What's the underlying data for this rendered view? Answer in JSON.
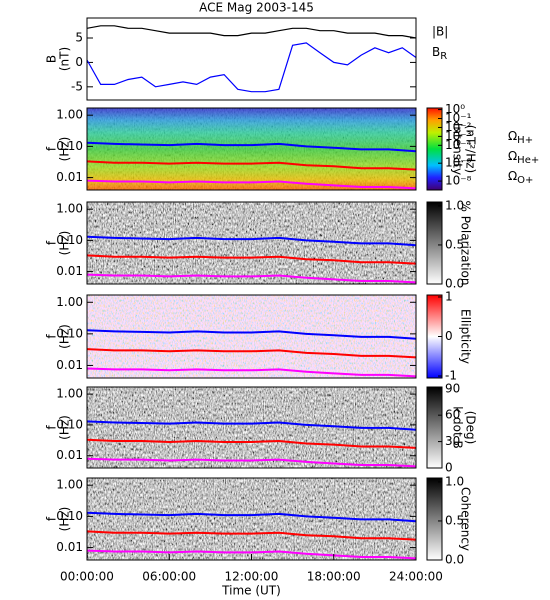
{
  "chart_data": [
    {
      "type": "line",
      "title": "ACE Mag 2003-145",
      "ylabel": [
        "B",
        "(nT)"
      ],
      "xlim": [
        0,
        24
      ],
      "ylim": [
        -7.7,
        9.1
      ],
      "yticks": [
        -5,
        0,
        5
      ],
      "x": [
        0,
        1,
        2,
        3,
        4,
        5,
        6,
        7,
        8,
        9,
        10,
        11,
        12,
        13,
        14,
        15,
        16,
        17,
        18,
        19,
        20,
        21,
        22,
        23,
        24
      ],
      "series": [
        {
          "name": "|B|",
          "color": "#000000",
          "values": [
            7,
            7.5,
            7.5,
            7,
            7,
            6.5,
            6,
            6,
            6,
            6,
            5.5,
            5.5,
            6,
            6,
            6.5,
            7,
            7,
            6.5,
            6.5,
            6,
            6,
            6,
            5.5,
            5.5,
            5
          ]
        },
        {
          "name": "BR",
          "color": "#0000ff",
          "values": [
            0.5,
            -4.5,
            -4.5,
            -3.5,
            -3,
            -5,
            -4.5,
            -4,
            -4.5,
            -3,
            -2.5,
            -5.5,
            -6,
            -6,
            -5.5,
            3.5,
            4,
            2,
            0,
            -0.5,
            1.5,
            3,
            2,
            3,
            1
          ]
        }
      ]
    },
    {
      "type": "spectrogram",
      "ylabel": [
        "f",
        "(Hz)"
      ],
      "log_y": true,
      "xlim": [
        0,
        24
      ],
      "ylim": [
        0.004,
        1.7
      ],
      "yticks": [
        {
          "value": 0.01,
          "label": "0.01"
        },
        {
          "value": 0.1,
          "label": "0.10"
        },
        {
          "value": 1,
          "label": "1.00"
        }
      ],
      "x": [
        0,
        2,
        4,
        6,
        8,
        10,
        12,
        14,
        16,
        18,
        20,
        22,
        24
      ],
      "series": [
        {
          "name": "ΩH+",
          "color": "#0000ff",
          "values": [
            0.13,
            0.12,
            0.115,
            0.11,
            0.12,
            0.11,
            0.11,
            0.12,
            0.1,
            0.09,
            0.08,
            0.08,
            0.07
          ]
        },
        {
          "name": "ΩHe+",
          "color": "#ff0000",
          "values": [
            0.033,
            0.03,
            0.03,
            0.028,
            0.03,
            0.028,
            0.028,
            0.03,
            0.025,
            0.023,
            0.02,
            0.02,
            0.018
          ]
        },
        {
          "name": "ΩO+",
          "color": "#ff00ff",
          "values": [
            0.008,
            0.0075,
            0.0075,
            0.007,
            0.0075,
            0.007,
            0.007,
            0.0075,
            0.0063,
            0.0056,
            0.005,
            0.005,
            0.0045
          ]
        }
      ],
      "colorbar": {
        "label": [
          "Intensity",
          "(nT²/Hz)"
        ],
        "log": true,
        "lim": [
          1e-09,
          1.5
        ],
        "ticks": [
          {
            "value": 1,
            "label": "10⁰"
          },
          {
            "value": 0.1,
            "label": "10⁻¹"
          },
          {
            "value": 0.01,
            "label": "10⁻²"
          },
          {
            "value": 0.001,
            "label": "10⁻³"
          },
          {
            "value": 0.0001,
            "label": "10⁻⁴"
          },
          {
            "value": 1e-06,
            "label": "10⁻⁶"
          },
          {
            "value": 1e-08,
            "label": "10⁻⁸"
          }
        ]
      }
    },
    {
      "type": "spectrogram",
      "ylabel": [
        "f",
        "(Hz)"
      ],
      "log_y": true,
      "xlim": [
        0,
        24
      ],
      "ylim": [
        0.004,
        1.7
      ],
      "yticks": [
        {
          "value": 0.01,
          "label": "0.01"
        },
        {
          "value": 0.1,
          "label": "0.10"
        },
        {
          "value": 1,
          "label": "1.00"
        }
      ],
      "x": [
        0,
        2,
        4,
        6,
        8,
        10,
        12,
        14,
        16,
        18,
        20,
        22,
        24
      ],
      "series": [
        {
          "color": "#0000ff",
          "values": [
            0.13,
            0.12,
            0.115,
            0.11,
            0.12,
            0.11,
            0.11,
            0.12,
            0.1,
            0.09,
            0.08,
            0.08,
            0.07
          ]
        },
        {
          "color": "#ff0000",
          "values": [
            0.033,
            0.03,
            0.03,
            0.028,
            0.03,
            0.028,
            0.028,
            0.03,
            0.025,
            0.023,
            0.02,
            0.02,
            0.018
          ]
        },
        {
          "color": "#ff00ff",
          "values": [
            0.008,
            0.0075,
            0.0075,
            0.007,
            0.0075,
            0.007,
            0.007,
            0.0075,
            0.0063,
            0.0056,
            0.005,
            0.005,
            0.0045
          ]
        }
      ],
      "colorbar": {
        "label": [
          "% Polarization"
        ],
        "log": false,
        "lim": [
          0,
          1.05
        ],
        "ticks": [
          {
            "value": 0,
            "label": "0.0"
          },
          {
            "value": 0.5,
            "label": "0.5"
          },
          {
            "value": 1,
            "label": "1.0"
          }
        ]
      }
    },
    {
      "type": "spectrogram",
      "ylabel": [
        "f",
        "(Hz)"
      ],
      "log_y": true,
      "xlim": [
        0,
        24
      ],
      "ylim": [
        0.004,
        1.7
      ],
      "yticks": [
        {
          "value": 0.01,
          "label": "0.01"
        },
        {
          "value": 0.1,
          "label": "0.10"
        },
        {
          "value": 1,
          "label": "1.00"
        }
      ],
      "x": [
        0,
        2,
        4,
        6,
        8,
        10,
        12,
        14,
        16,
        18,
        20,
        22,
        24
      ],
      "series": [
        {
          "color": "#0000ff",
          "values": [
            0.13,
            0.12,
            0.115,
            0.11,
            0.12,
            0.11,
            0.11,
            0.12,
            0.1,
            0.09,
            0.08,
            0.08,
            0.07
          ]
        },
        {
          "color": "#ff0000",
          "values": [
            0.033,
            0.03,
            0.03,
            0.028,
            0.03,
            0.028,
            0.028,
            0.03,
            0.025,
            0.023,
            0.02,
            0.02,
            0.018
          ]
        },
        {
          "color": "#ff00ff",
          "values": [
            0.008,
            0.0075,
            0.0075,
            0.007,
            0.0075,
            0.007,
            0.007,
            0.0075,
            0.0063,
            0.0056,
            0.005,
            0.005,
            0.0045
          ]
        }
      ],
      "colorbar": {
        "label": [
          "Ellipticity"
        ],
        "log": false,
        "lim": [
          -1.05,
          1.05
        ],
        "ticks": [
          -1,
          0,
          1
        ]
      }
    },
    {
      "type": "spectrogram",
      "ylabel": [
        "f",
        "(Hz)"
      ],
      "log_y": true,
      "xlim": [
        0,
        24
      ],
      "ylim": [
        0.004,
        1.7
      ],
      "yticks": [
        {
          "value": 0.01,
          "label": "0.01"
        },
        {
          "value": 0.1,
          "label": "0.10"
        },
        {
          "value": 1,
          "label": "1.00"
        }
      ],
      "x": [
        0,
        2,
        4,
        6,
        8,
        10,
        12,
        14,
        16,
        18,
        20,
        22,
        24
      ],
      "series": [
        {
          "color": "#0000ff",
          "values": [
            0.13,
            0.12,
            0.115,
            0.11,
            0.12,
            0.11,
            0.11,
            0.12,
            0.1,
            0.09,
            0.08,
            0.08,
            0.07
          ]
        },
        {
          "color": "#ff0000",
          "values": [
            0.033,
            0.03,
            0.03,
            0.028,
            0.03,
            0.028,
            0.028,
            0.03,
            0.025,
            0.023,
            0.02,
            0.02,
            0.018
          ]
        },
        {
          "color": "#ff00ff",
          "values": [
            0.008,
            0.0075,
            0.0075,
            0.007,
            0.0075,
            0.007,
            0.007,
            0.0075,
            0.0063,
            0.0056,
            0.005,
            0.005,
            0.0045
          ]
        }
      ],
      "colorbar": {
        "label": [
          "k dot B",
          "(Deg)"
        ],
        "log": false,
        "lim": [
          0,
          92
        ],
        "ticks": [
          0,
          30,
          60,
          90
        ]
      }
    },
    {
      "type": "spectrogram",
      "ylabel": [
        "f",
        "(Hz)"
      ],
      "log_y": true,
      "xlim": [
        0,
        24
      ],
      "ylim": [
        0.004,
        1.7
      ],
      "yticks": [
        {
          "value": 0.01,
          "label": "0.01"
        },
        {
          "value": 0.1,
          "label": "0.10"
        },
        {
          "value": 1,
          "label": "1.00"
        }
      ],
      "x": [
        0,
        2,
        4,
        6,
        8,
        10,
        12,
        14,
        16,
        18,
        20,
        22,
        24
      ],
      "series": [
        {
          "color": "#0000ff",
          "values": [
            0.13,
            0.12,
            0.115,
            0.11,
            0.12,
            0.11,
            0.11,
            0.12,
            0.1,
            0.09,
            0.08,
            0.08,
            0.07
          ]
        },
        {
          "color": "#ff0000",
          "values": [
            0.033,
            0.03,
            0.03,
            0.028,
            0.03,
            0.028,
            0.028,
            0.03,
            0.025,
            0.023,
            0.02,
            0.02,
            0.018
          ]
        },
        {
          "color": "#ff00ff",
          "values": [
            0.008,
            0.0075,
            0.0075,
            0.007,
            0.0075,
            0.007,
            0.007,
            0.0075,
            0.0063,
            0.0056,
            0.005,
            0.005,
            0.0045
          ]
        }
      ],
      "colorbar": {
        "label": [
          "Coherency"
        ],
        "log": false,
        "lim": [
          0,
          1.05
        ],
        "ticks": [
          {
            "value": 0,
            "label": "0.0"
          },
          {
            "value": 0.5,
            "label": "0.5"
          },
          {
            "value": 1,
            "label": "1.0"
          }
        ]
      },
      "xticks": [
        {
          "value": 0,
          "label": "00:00:00"
        },
        {
          "value": 6,
          "label": "06:00:00"
        },
        {
          "value": 12,
          "label": "12:00:00"
        },
        {
          "value": 18,
          "label": "18:00:00"
        },
        {
          "value": 24,
          "label": "24:00:00"
        }
      ],
      "xlabel": "Time (UT)"
    }
  ]
}
